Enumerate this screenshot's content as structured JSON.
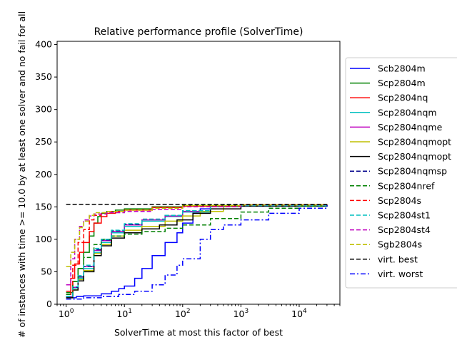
{
  "chart_data": {
    "type": "line",
    "title": "Relative performance profile (SolverTime)",
    "xlabel": "SolverTime at most this factor of best",
    "ylabel": "# of instances with time >= 10.0 by at least one solver and no fail for all",
    "x_scale": "log",
    "xlim": [
      0.7,
      50000
    ],
    "ylim": [
      0,
      405
    ],
    "x_ticks": [
      1,
      10,
      100,
      1000,
      10000
    ],
    "x_tick_labels": [
      "10^0",
      "10^1",
      "10^2",
      "10^3",
      "10^4"
    ],
    "y_ticks": [
      0,
      50,
      100,
      150,
      200,
      250,
      300,
      350,
      400
    ],
    "y_tick_labels": [
      "0",
      "50",
      "100",
      "150",
      "200",
      "250",
      "300",
      "350",
      "400"
    ],
    "legend_position": "right, outside plot",
    "series": [
      {
        "name": "Scb2804m",
        "color": "#0000ff",
        "style": "solid",
        "points": [
          [
            1,
            10
          ],
          [
            1.5,
            12
          ],
          [
            2,
            13
          ],
          [
            4,
            16
          ],
          [
            6,
            20
          ],
          [
            8,
            24
          ],
          [
            10,
            28
          ],
          [
            15,
            40
          ],
          [
            20,
            55
          ],
          [
            30,
            75
          ],
          [
            50,
            95
          ],
          [
            80,
            110
          ],
          [
            100,
            125
          ],
          [
            150,
            140
          ],
          [
            200,
            147
          ],
          [
            300,
            150
          ],
          [
            500,
            152
          ],
          [
            1000,
            153
          ],
          [
            30000,
            154
          ]
        ]
      },
      {
        "name": "Scp2804m",
        "color": "#008000",
        "style": "solid",
        "points": [
          [
            1,
            18
          ],
          [
            1.3,
            35
          ],
          [
            1.6,
            55
          ],
          [
            2,
            80
          ],
          [
            2.5,
            105
          ],
          [
            3,
            125
          ],
          [
            3.5,
            135
          ],
          [
            4,
            140
          ],
          [
            5,
            143
          ],
          [
            7,
            145
          ],
          [
            10,
            147
          ],
          [
            30,
            150
          ],
          [
            100,
            152
          ],
          [
            1000,
            153
          ],
          [
            30000,
            154
          ]
        ]
      },
      {
        "name": "Scp2804nq",
        "color": "#ff0000",
        "style": "solid",
        "points": [
          [
            1,
            15
          ],
          [
            1.2,
            40
          ],
          [
            1.4,
            62
          ],
          [
            1.7,
            80
          ],
          [
            2,
            95
          ],
          [
            2.5,
            112
          ],
          [
            3,
            125
          ],
          [
            4,
            135
          ],
          [
            5,
            140
          ],
          [
            7,
            143
          ],
          [
            10,
            145
          ],
          [
            30,
            149
          ],
          [
            100,
            151
          ],
          [
            1000,
            153
          ],
          [
            30000,
            154
          ]
        ]
      },
      {
        "name": "Scp2804nqm",
        "color": "#00bfbf",
        "style": "solid",
        "points": [
          [
            1,
            12
          ],
          [
            1.3,
            25
          ],
          [
            1.6,
            40
          ],
          [
            2,
            55
          ],
          [
            3,
            80
          ],
          [
            4,
            95
          ],
          [
            6,
            110
          ],
          [
            10,
            120
          ],
          [
            20,
            128
          ],
          [
            50,
            135
          ],
          [
            100,
            142
          ],
          [
            300,
            150
          ],
          [
            1000,
            152
          ],
          [
            30000,
            154
          ]
        ]
      },
      {
        "name": "Scp2804nqme",
        "color": "#bf00bf",
        "style": "solid",
        "points": [
          [
            1,
            12
          ],
          [
            1.3,
            26
          ],
          [
            1.6,
            42
          ],
          [
            2,
            58
          ],
          [
            3,
            83
          ],
          [
            4,
            98
          ],
          [
            6,
            112
          ],
          [
            10,
            122
          ],
          [
            20,
            130
          ],
          [
            50,
            136
          ],
          [
            100,
            143
          ],
          [
            300,
            150
          ],
          [
            1000,
            152
          ],
          [
            30000,
            154
          ]
        ]
      },
      {
        "name": "Scp2804nqmopt",
        "color": "#bfbf00",
        "style": "solid",
        "points": [
          [
            1,
            10
          ],
          [
            1.3,
            22
          ],
          [
            1.6,
            38
          ],
          [
            2,
            52
          ],
          [
            3,
            78
          ],
          [
            4,
            92
          ],
          [
            6,
            105
          ],
          [
            10,
            114
          ],
          [
            20,
            120
          ],
          [
            50,
            128
          ],
          [
            100,
            136
          ],
          [
            200,
            143
          ],
          [
            500,
            150
          ],
          [
            1000,
            152
          ],
          [
            30000,
            154
          ]
        ]
      },
      {
        "name": "Scp2804nqmopt",
        "color": "#000000",
        "style": "solid",
        "points": [
          [
            1,
            10
          ],
          [
            1.3,
            22
          ],
          [
            1.6,
            36
          ],
          [
            2,
            50
          ],
          [
            3,
            75
          ],
          [
            4,
            90
          ],
          [
            6,
            102
          ],
          [
            10,
            110
          ],
          [
            20,
            116
          ],
          [
            40,
            122
          ],
          [
            80,
            130
          ],
          [
            150,
            140
          ],
          [
            300,
            147
          ],
          [
            1000,
            151
          ],
          [
            30000,
            154
          ]
        ]
      },
      {
        "name": "Scp2804nqmsp",
        "color": "#00008b",
        "style": "dashed",
        "points": [
          [
            1,
            12
          ],
          [
            1.3,
            26
          ],
          [
            1.6,
            42
          ],
          [
            2,
            58
          ],
          [
            3,
            84
          ],
          [
            4,
            99
          ],
          [
            6,
            113
          ],
          [
            10,
            123
          ],
          [
            20,
            131
          ],
          [
            50,
            137
          ],
          [
            100,
            144
          ],
          [
            300,
            150
          ],
          [
            1000,
            152
          ],
          [
            30000,
            154
          ]
        ]
      },
      {
        "name": "Scp2804nref",
        "color": "#008000",
        "style": "dashed",
        "points": [
          [
            1,
            15
          ],
          [
            1.3,
            35
          ],
          [
            1.6,
            55
          ],
          [
            2,
            72
          ],
          [
            3,
            92
          ],
          [
            4,
            100
          ],
          [
            6,
            105
          ],
          [
            10,
            108
          ],
          [
            20,
            112
          ],
          [
            50,
            117
          ],
          [
            100,
            122
          ],
          [
            300,
            132
          ],
          [
            1000,
            142
          ],
          [
            3000,
            148
          ],
          [
            10000,
            151
          ],
          [
            30000,
            154
          ]
        ]
      },
      {
        "name": "Scp2804s",
        "color": "#ff0000",
        "style": "dashed",
        "points": [
          [
            1,
            20
          ],
          [
            1.3,
            60
          ],
          [
            1.6,
            95
          ],
          [
            2,
            115
          ],
          [
            2.5,
            130
          ],
          [
            3,
            137
          ],
          [
            4,
            141
          ],
          [
            6,
            143
          ],
          [
            10,
            145
          ],
          [
            30,
            149
          ],
          [
            100,
            151
          ],
          [
            1000,
            153
          ],
          [
            30000,
            154
          ]
        ]
      },
      {
        "name": "Scp2804st1",
        "color": "#00bfbf",
        "style": "dashed",
        "points": [
          [
            1,
            12
          ],
          [
            1.3,
            27
          ],
          [
            1.6,
            44
          ],
          [
            2,
            60
          ],
          [
            3,
            86
          ],
          [
            4,
            100
          ],
          [
            6,
            114
          ],
          [
            10,
            124
          ],
          [
            20,
            131
          ],
          [
            50,
            137
          ],
          [
            100,
            144
          ],
          [
            300,
            150
          ],
          [
            1000,
            152
          ],
          [
            30000,
            154
          ]
        ]
      },
      {
        "name": "Scp2804st4",
        "color": "#bf00bf",
        "style": "dashed",
        "points": [
          [
            1,
            30
          ],
          [
            1.2,
            70
          ],
          [
            1.4,
            100
          ],
          [
            1.7,
            120
          ],
          [
            2,
            130
          ],
          [
            2.5,
            136
          ],
          [
            3,
            139
          ],
          [
            5,
            141
          ],
          [
            10,
            143
          ],
          [
            30,
            146
          ],
          [
            100,
            150
          ],
          [
            1000,
            153
          ],
          [
            30000,
            154
          ]
        ]
      },
      {
        "name": "Sgb2804s",
        "color": "#bfbf00",
        "style": "dashed",
        "points": [
          [
            1,
            58
          ],
          [
            1.2,
            80
          ],
          [
            1.4,
            100
          ],
          [
            1.7,
            118
          ],
          [
            2,
            128
          ],
          [
            2.5,
            137
          ],
          [
            3,
            141
          ],
          [
            5,
            143
          ],
          [
            10,
            145
          ],
          [
            30,
            148
          ],
          [
            100,
            152
          ],
          [
            1000,
            153
          ],
          [
            30000,
            154
          ]
        ]
      },
      {
        "name": "virt. best",
        "color": "#000000",
        "style": "dashed",
        "points": [
          [
            1,
            154
          ],
          [
            30000,
            154
          ]
        ]
      },
      {
        "name": "virt. worst",
        "color": "#0000ff",
        "style": "dashdot",
        "points": [
          [
            1,
            8
          ],
          [
            2,
            10
          ],
          [
            4,
            12
          ],
          [
            8,
            15
          ],
          [
            15,
            20
          ],
          [
            30,
            30
          ],
          [
            50,
            45
          ],
          [
            80,
            60
          ],
          [
            100,
            70
          ],
          [
            200,
            100
          ],
          [
            300,
            115
          ],
          [
            500,
            122
          ],
          [
            1000,
            130
          ],
          [
            3000,
            140
          ],
          [
            10000,
            148
          ],
          [
            30000,
            153
          ]
        ]
      }
    ]
  }
}
